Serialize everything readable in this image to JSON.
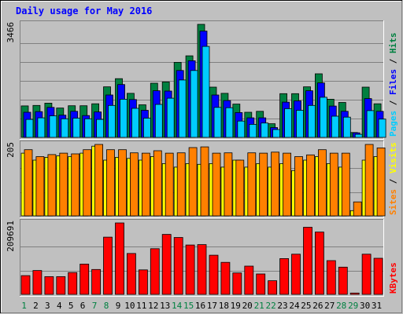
{
  "chart_data": {
    "type": "bar",
    "title": "Daily usage for May 2016",
    "categories": [
      "1",
      "2",
      "3",
      "4",
      "5",
      "6",
      "7",
      "8",
      "9",
      "10",
      "11",
      "12",
      "13",
      "14",
      "15",
      "16",
      "17",
      "18",
      "19",
      "20",
      "21",
      "22",
      "23",
      "24",
      "25",
      "26",
      "27",
      "28",
      "29",
      "30",
      "31"
    ],
    "weekend_days": [
      "1",
      "7",
      "8",
      "14",
      "15",
      "21",
      "22",
      "28",
      "29"
    ],
    "panels": [
      {
        "key": "hits",
        "max_label": "3466",
        "ymax": 3466,
        "label_parts": [
          {
            "text": "Pages",
            "color": "#00ccff"
          },
          {
            "text": " / ",
            "color": "#000000"
          },
          {
            "text": "Files",
            "color": "#0000ff"
          },
          {
            "text": " / ",
            "color": "#000000"
          },
          {
            "text": "Hits",
            "color": "#008040"
          }
        ],
        "series": [
          {
            "name": "Hits",
            "color": "#008040",
            "values": [
              965,
              980,
              1050,
              900,
              970,
              970,
              1030,
              1550,
              1800,
              1350,
              1000,
              1660,
              1700,
              2300,
              2500,
              3466,
              1540,
              1350,
              1020,
              770,
              800,
              420,
              1340,
              1340,
              1550,
              1950,
              1170,
              1070,
              150,
              1540,
              1030
            ]
          },
          {
            "name": "Files",
            "color": "#0000ff",
            "values": [
              770,
              790,
              920,
              680,
              800,
              670,
              780,
              1300,
              1620,
              1160,
              830,
              1430,
              1420,
              2050,
              2350,
              3260,
              1300,
              1130,
              760,
              600,
              600,
              300,
              1080,
              1120,
              1430,
              1670,
              960,
              800,
              140,
              1190,
              800
            ]
          },
          {
            "name": "Pages",
            "color": "#00ccff",
            "values": [
              550,
              600,
              660,
              570,
              590,
              570,
              550,
              980,
              1170,
              890,
              590,
              1010,
              1200,
              1760,
              2050,
              2790,
              920,
              910,
              500,
              400,
              440,
              240,
              880,
              830,
              980,
              1230,
              650,
              620,
              95,
              820,
              560
            ]
          }
        ]
      },
      {
        "key": "visits",
        "max_label": "205",
        "ymax": 205,
        "label_parts": [
          {
            "text": "Sites",
            "color": "#ff8000"
          },
          {
            "text": " / ",
            "color": "#000000"
          },
          {
            "text": "Visits",
            "color": "#ffff00"
          }
        ],
        "series": [
          {
            "name": "Visits",
            "color": "#ffff00",
            "values": [
              180,
              160,
              168,
              172,
              170,
              180,
              200,
              160,
              168,
              165,
              160,
              170,
              150,
              140,
              150,
              148,
              150,
              140,
              160,
              140,
              150,
              140,
              150,
              130,
              160,
              170,
              150,
              140,
              15,
              160,
              170
            ]
          },
          {
            "name": "Sites",
            "color": "#ff8000",
            "values": [
              190,
              170,
              176,
              180,
              178,
              190,
              205,
              190,
              190,
              181,
              180,
              187,
              180,
              181,
              196,
              198,
              180,
              181,
              160,
              181,
              180,
              183,
              180,
              170,
              175,
              190,
              180,
              180,
              40,
              205,
              195
            ]
          }
        ]
      },
      {
        "key": "kbytes",
        "max_label": "209691",
        "ymax": 209691,
        "label_parts": [
          {
            "text": "KBytes",
            "color": "#ff0000"
          }
        ],
        "series": [
          {
            "name": "KBytes",
            "color": "#ff0000",
            "values": [
              55000,
              70000,
              52000,
              52000,
              64000,
              89000,
              73000,
              168000,
              209691,
              120000,
              72000,
              134000,
              176000,
              167000,
              145000,
              146000,
              115000,
              94000,
              63000,
              83000,
              60000,
              40000,
              105000,
              118000,
              197000,
              183000,
              99000,
              80000,
              4000,
              118000,
              106000
            ]
          }
        ]
      }
    ],
    "grid": true,
    "xlabel": "",
    "ylabel": ""
  }
}
